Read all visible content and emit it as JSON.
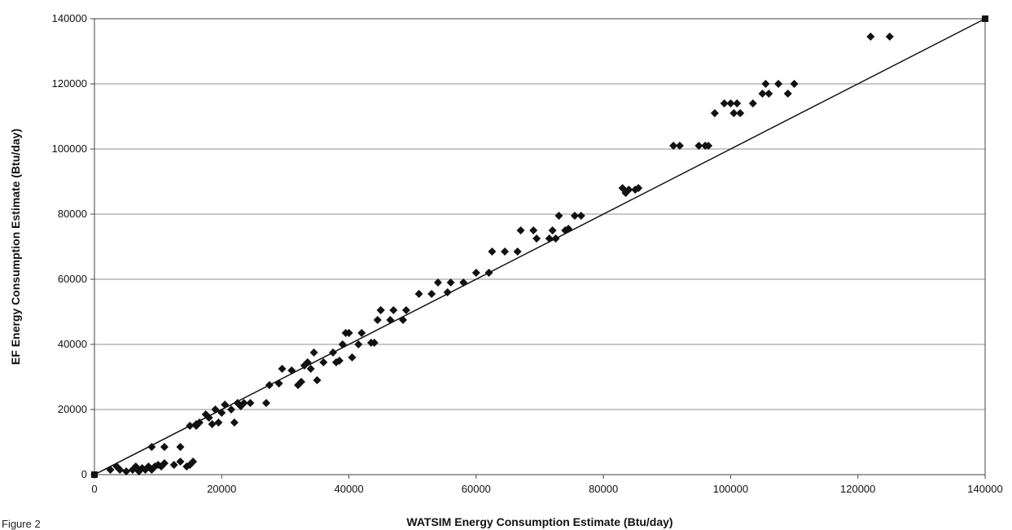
{
  "caption": "Figure 2",
  "chart_data": {
    "type": "scatter",
    "title": "",
    "xlabel": "WATSIM Energy Consumption Estimate (Btu/day)",
    "ylabel": "EF Energy Consumption Estimate (Btu/day)",
    "xlim": [
      0,
      140000
    ],
    "ylim": [
      0,
      140000
    ],
    "x_ticks": [
      0,
      20000,
      40000,
      60000,
      80000,
      100000,
      120000,
      140000
    ],
    "y_ticks": [
      0,
      20000,
      40000,
      60000,
      80000,
      100000,
      120000,
      140000
    ],
    "x_tick_labels": [
      "0",
      "20000",
      "40000",
      "60000",
      "80000",
      "100000",
      "120000",
      "140000"
    ],
    "y_tick_labels": [
      "0",
      "20000",
      "40000",
      "60000",
      "80000",
      "100000",
      "120000",
      "140000"
    ],
    "grid": "horizontal",
    "marker_color": "#111111",
    "line_color": "#111111",
    "reference_line": {
      "x": [
        0,
        140000
      ],
      "y": [
        0,
        140000
      ]
    },
    "endpoint_markers": {
      "x": [
        0,
        140000
      ],
      "y": [
        0,
        140000
      ]
    },
    "points": {
      "x": [
        2500,
        3500,
        4000,
        5000,
        6000,
        6500,
        7000,
        7500,
        8000,
        8500,
        9000,
        9500,
        10000,
        10500,
        11000,
        12500,
        13500,
        14500,
        15000,
        15500,
        16000,
        9000,
        11000,
        13500,
        15000,
        16000,
        16500,
        17500,
        18000,
        18500,
        19000,
        19500,
        20000,
        20500,
        21500,
        22000,
        22500,
        23000,
        23500,
        24500,
        27000,
        27500,
        29000,
        29500,
        31000,
        32000,
        32500,
        33000,
        33500,
        34000,
        34500,
        35000,
        36000,
        37500,
        38000,
        38500,
        39000,
        39500,
        40000,
        40500,
        41500,
        42000,
        43500,
        44000,
        44500,
        45000,
        45000,
        46500,
        47000,
        48500,
        49000,
        51000,
        53000,
        54000,
        55500,
        56000,
        58000,
        60000,
        62000,
        62500,
        64500,
        66500,
        67000,
        69000,
        69500,
        71500,
        72000,
        72500,
        73000,
        74000,
        74500,
        75500,
        76500,
        83000,
        83500,
        84000,
        85000,
        85500,
        91000,
        92000,
        95000,
        96000,
        96500,
        97500,
        99000,
        100000,
        100500,
        101000,
        101500,
        103500,
        105000,
        105500,
        106000,
        107500,
        109000,
        110000,
        122000,
        125000
      ],
      "y": [
        1500,
        2500,
        1500,
        1000,
        1500,
        2500,
        1000,
        2000,
        1500,
        2500,
        1500,
        2500,
        3000,
        2500,
        3500,
        3000,
        4000,
        2500,
        3000,
        4000,
        15000,
        8500,
        8500,
        8500,
        15000,
        15500,
        16000,
        18500,
        17500,
        15500,
        20000,
        16000,
        19000,
        21500,
        20000,
        16000,
        22000,
        21000,
        22000,
        22000,
        22000,
        27500,
        28000,
        32500,
        32000,
        27500,
        28500,
        33500,
        34500,
        32500,
        37500,
        29000,
        34500,
        37500,
        34500,
        35000,
        40000,
        43500,
        43500,
        36000,
        40000,
        43500,
        40500,
        40500,
        47500,
        50500,
        50500,
        47500,
        50500,
        47500,
        50500,
        55500,
        55500,
        59000,
        56000,
        59000,
        59000,
        62000,
        62000,
        68500,
        68500,
        68500,
        75000,
        75000,
        72500,
        72500,
        75000,
        72500,
        79500,
        75000,
        75500,
        79500,
        79500,
        88000,
        86500,
        87500,
        87500,
        88000,
        101000,
        101000,
        101000,
        101000,
        101000,
        111000,
        114000,
        114000,
        111000,
        114000,
        111000,
        114000,
        117000,
        120000,
        117000,
        120000,
        117000,
        120000,
        134500,
        134500
      ]
    }
  }
}
